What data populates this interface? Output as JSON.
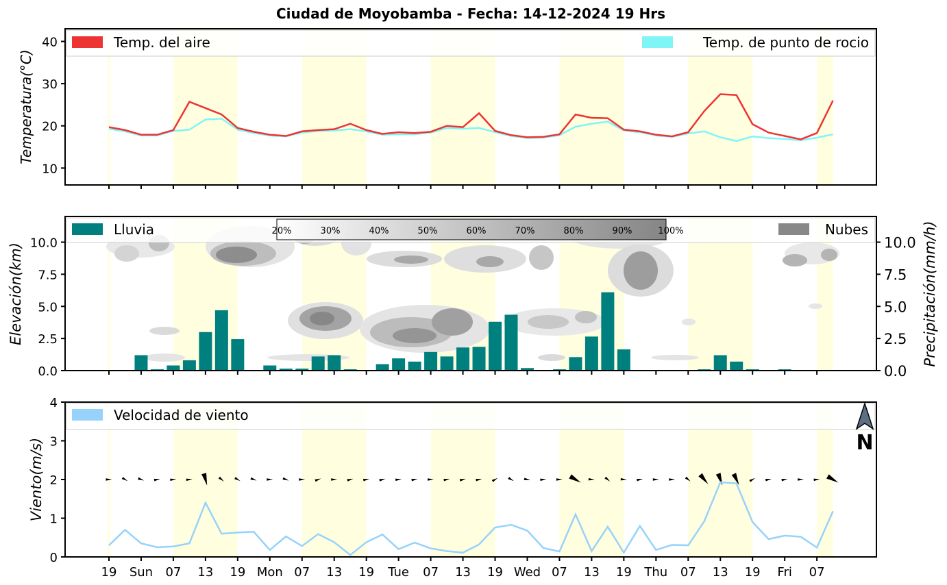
{
  "title": "Ciudad de Moyobamba   -   Fecha: 14-12-2024 19 Hrs",
  "colors": {
    "air_temp": "#ee3333",
    "dew_point": "#7ff5f5",
    "rain": "#007f7f",
    "clouds": "#888888",
    "wind": "#96d2fa",
    "daytime_shade": "#ffffe0",
    "compass": "#5c6f85"
  },
  "x_axis": {
    "tick_labels": [
      "19",
      "Sun",
      "07",
      "13",
      "19",
      "Mon",
      "07",
      "13",
      "19",
      "Tue",
      "07",
      "13",
      "19",
      "Wed",
      "07",
      "13",
      "19",
      "Thu",
      "07",
      "13",
      "19",
      "Fri",
      "07"
    ],
    "daytime_bands": [
      [
        4,
        8
      ],
      [
        12,
        16
      ],
      [
        20,
        24
      ],
      [
        28,
        32
      ],
      [
        36,
        40
      ],
      [
        44,
        45
      ]
    ]
  },
  "chart_data": [
    {
      "type": "line",
      "panel": "temperature",
      "ylabel": "Temperatura(°C)",
      "ylim": [
        6,
        43
      ],
      "yticks": [
        10,
        20,
        30,
        40
      ],
      "legend_left": "Temp. del aire",
      "legend_right": "Temp. de punto de rocio",
      "series": [
        {
          "name": "Temp. del aire",
          "values": [
            19.7,
            19.0,
            17.9,
            17.9,
            19.0,
            25.7,
            24.2,
            22.7,
            19.5,
            18.6,
            17.9,
            17.6,
            18.7,
            19.0,
            19.2,
            20.5,
            19.0,
            18.1,
            18.5,
            18.3,
            18.6,
            20.0,
            19.7,
            23.0,
            18.8,
            17.8,
            17.3,
            17.4,
            18.0,
            22.7,
            21.9,
            21.8,
            19.1,
            18.7,
            17.9,
            17.5,
            18.5,
            23.5,
            27.5,
            27.3,
            20.4,
            18.4,
            17.6,
            16.8,
            18.3,
            26.0
          ]
        },
        {
          "name": "Temp. de punto de rocio",
          "values": [
            19.3,
            18.7,
            17.7,
            17.7,
            18.8,
            19.1,
            21.5,
            21.7,
            19.1,
            18.3,
            17.7,
            17.5,
            18.4,
            18.8,
            18.9,
            19.2,
            18.7,
            17.9,
            18.0,
            18.0,
            18.4,
            19.5,
            19.3,
            19.5,
            18.5,
            17.6,
            17.1,
            17.2,
            17.8,
            19.8,
            20.5,
            21.0,
            18.9,
            18.5,
            17.7,
            17.4,
            18.2,
            18.7,
            17.3,
            16.4,
            17.5,
            17.1,
            16.9,
            16.6,
            17.2,
            18.0
          ]
        }
      ]
    },
    {
      "type": "bar",
      "panel": "precipitation",
      "ylabel_left": "Elevación(km)",
      "ylabel_right": "Precipitación(mm/h)",
      "ylim": [
        0,
        12
      ],
      "yticks": [
        0.0,
        2.5,
        5.0,
        7.5,
        10.0
      ],
      "yticklabels": [
        "0.0",
        "2.5",
        "5.0",
        "7.5",
        "10.0"
      ],
      "legend_left": "Lluvia",
      "legend_right": "Nubes",
      "cloud_scale": [
        "20%",
        "30%",
        "40%",
        "50%",
        "60%",
        "70%",
        "80%",
        "90%",
        "100%"
      ],
      "series": [
        {
          "name": "Lluvia",
          "values": [
            0,
            0.05,
            1.2,
            0.1,
            0.4,
            0.8,
            3.0,
            4.7,
            2.45,
            0,
            0.4,
            0.15,
            0.15,
            1.1,
            1.2,
            0.1,
            0.05,
            0.5,
            0.95,
            0.7,
            1.45,
            1.1,
            1.8,
            1.85,
            3.8,
            4.35,
            0.2,
            0.05,
            0.1,
            1.05,
            2.65,
            6.1,
            1.65,
            0,
            0,
            0,
            0,
            0.1,
            1.2,
            0.7,
            0.1,
            0,
            0.1,
            0.05,
            0.05,
            0
          ]
        }
      ]
    },
    {
      "type": "line",
      "panel": "wind",
      "ylabel": "Viento(m/s)",
      "ylim": [
        0,
        4
      ],
      "yticks": [
        0,
        1,
        2,
        3,
        4
      ],
      "legend_left": "Velocidad de viento",
      "compass_label": "N",
      "series": [
        {
          "name": "Velocidad de viento",
          "values": [
            0.3,
            0.7,
            0.35,
            0.25,
            0.27,
            0.35,
            1.4,
            0.6,
            0.63,
            0.65,
            0.18,
            0.53,
            0.28,
            0.59,
            0.38,
            0.05,
            0.38,
            0.58,
            0.2,
            0.37,
            0.22,
            0.15,
            0.11,
            0.32,
            0.76,
            0.83,
            0.68,
            0.23,
            0.14,
            1.1,
            0.15,
            0.78,
            0.11,
            0.8,
            0.18,
            0.31,
            0.3,
            0.92,
            1.93,
            1.9,
            0.9,
            0.46,
            0.55,
            0.52,
            0.24,
            1.18
          ]
        }
      ]
    }
  ]
}
